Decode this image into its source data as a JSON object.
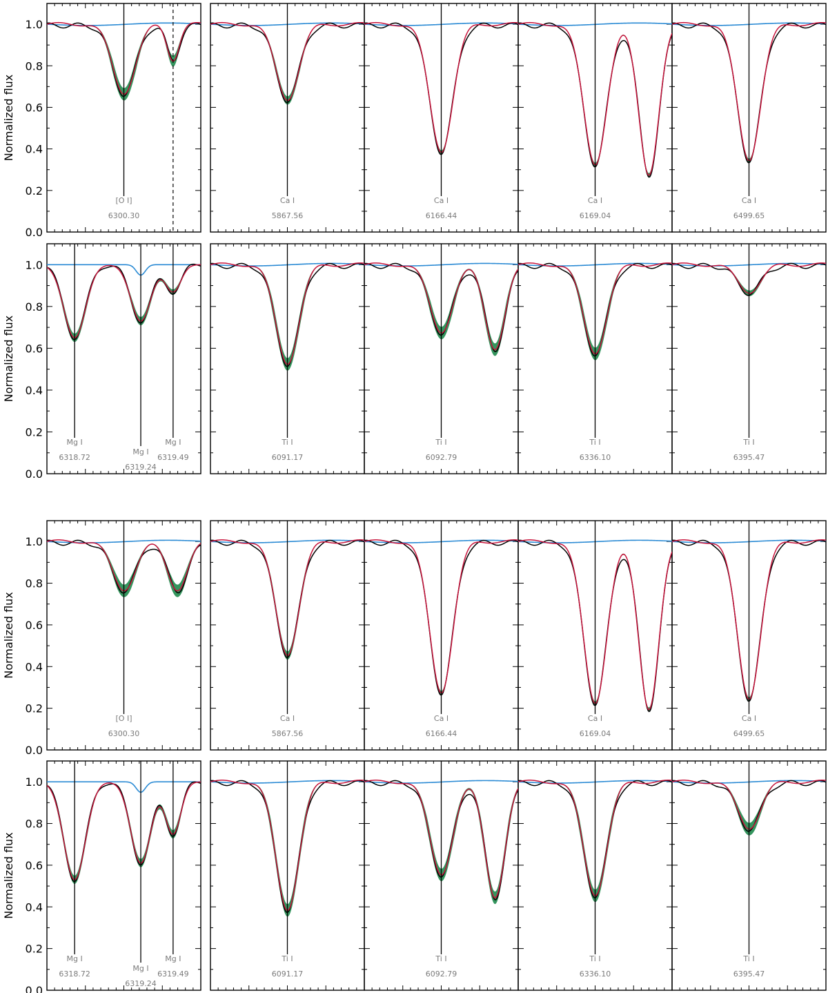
{
  "colors": {
    "observed": "#000000",
    "model": "#c8143c",
    "telluric": "#2a8ad4",
    "band": "#1f8a4c",
    "frame": "#000000",
    "label": "#7a7a7a"
  },
  "axes": {
    "ylabel": "Normalized flux",
    "ylim": [
      0,
      1.1
    ],
    "yticks": [
      "0.0",
      "0.2",
      "0.4",
      "0.6",
      "0.8",
      "1.0"
    ]
  },
  "chart_data": [
    {
      "type": "line",
      "group": "A",
      "panels": [
        {
          "species": "[O I]",
          "wavelength": "6300.30",
          "depth": 0.67,
          "band": 0.03,
          "blend": {
            "shape": "narrow",
            "depth": 0.83
          }
        },
        {
          "species": "Ca I",
          "wavelength": "5867.56",
          "depth": 0.64,
          "band": 0.02
        },
        {
          "species": "Ca I",
          "wavelength": "6166.44",
          "depth": 0.39,
          "band": 0.01
        },
        {
          "species": "Ca I",
          "wavelength": "6169.04",
          "depth": 0.33,
          "band": 0.01,
          "blend": {
            "shape": "wide",
            "depth": 0.28
          }
        },
        {
          "species": "Ca I",
          "wavelength": "6499.65",
          "depth": 0.35,
          "band": 0.01
        },
        {
          "species": "Mg I",
          "wavelengths": [
            "6318.72",
            "6319.24",
            "6319.49"
          ],
          "depths": [
            0.65,
            0.73,
            0.87
          ]
        },
        {
          "species": "Ti I",
          "wavelength": "6091.17",
          "depth": 0.53,
          "band": 0.03
        },
        {
          "species": "Ti I",
          "wavelength": "6092.79",
          "depth": 0.68,
          "band": 0.03,
          "blend": {
            "shape": "wide",
            "depth": 0.6
          }
        },
        {
          "species": "Ti I",
          "wavelength": "6336.10",
          "depth": 0.58,
          "band": 0.03
        },
        {
          "species": "Ti I",
          "wavelength": "6395.47",
          "depth": 0.87,
          "band": 0.02
        }
      ]
    },
    {
      "type": "line",
      "group": "B",
      "panels": [
        {
          "species": "[O I]",
          "wavelength": "6300.30",
          "depth": 0.77,
          "band": 0.03,
          "blend": {
            "shape": "wide",
            "depth": 0.77
          }
        },
        {
          "species": "Ca I",
          "wavelength": "5867.56",
          "depth": 0.46,
          "band": 0.02
        },
        {
          "species": "Ca I",
          "wavelength": "6166.44",
          "depth": 0.28,
          "band": 0.01
        },
        {
          "species": "Ca I",
          "wavelength": "6169.04",
          "depth": 0.23,
          "band": 0.01,
          "blend": {
            "shape": "wide",
            "depth": 0.2
          }
        },
        {
          "species": "Ca I",
          "wavelength": "6499.65",
          "depth": 0.25,
          "band": 0.01
        },
        {
          "species": "Mg I",
          "wavelengths": [
            "6318.72",
            "6319.24",
            "6319.49"
          ],
          "depths": [
            0.53,
            0.61,
            0.75
          ]
        },
        {
          "species": "Ti I",
          "wavelength": "6091.17",
          "depth": 0.39,
          "band": 0.03
        },
        {
          "species": "Ti I",
          "wavelength": "6092.79",
          "depth": 0.56,
          "band": 0.03,
          "blend": {
            "shape": "wide",
            "depth": 0.45
          }
        },
        {
          "species": "Ti I",
          "wavelength": "6336.10",
          "depth": 0.46,
          "band": 0.03
        },
        {
          "species": "Ti I",
          "wavelength": "6395.47",
          "depth": 0.78,
          "band": 0.03
        }
      ]
    }
  ]
}
